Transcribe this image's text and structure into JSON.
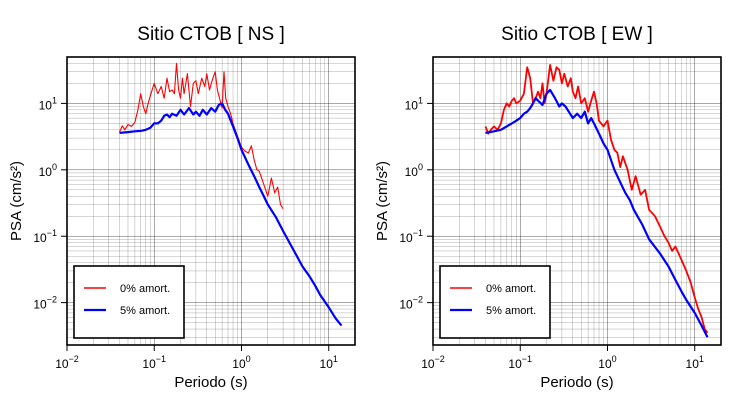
{
  "chart_data": [
    {
      "type": "line",
      "title": "Sitio CTOB [ NS ]",
      "xlabel": "Periodo (s)",
      "ylabel": "PSA (cm/s²)",
      "xscale": "log",
      "yscale": "log",
      "xlim": [
        0.01,
        20
      ],
      "ylim": [
        0.0023,
        50
      ],
      "xticks": [
        {
          "value": 0.01,
          "base": "10",
          "exp": "−2"
        },
        {
          "value": 0.1,
          "base": "10",
          "exp": "−1"
        },
        {
          "value": 1,
          "base": "10",
          "exp": "0"
        },
        {
          "value": 10,
          "base": "10",
          "exp": "1"
        }
      ],
      "yticks": [
        {
          "value": 0.01,
          "base": "10",
          "exp": "−2"
        },
        {
          "value": 0.1,
          "base": "10",
          "exp": "−1"
        },
        {
          "value": 1,
          "base": "10",
          "exp": "0"
        },
        {
          "value": 10,
          "base": "10",
          "exp": "1"
        }
      ],
      "grid": true,
      "legend_position": "bottom-left",
      "series": [
        {
          "name": "0% amort.",
          "color": "#ff0000",
          "x": [
            0.04,
            0.043,
            0.046,
            0.05,
            0.055,
            0.06,
            0.065,
            0.07,
            0.075,
            0.08,
            0.085,
            0.09,
            0.1,
            0.11,
            0.12,
            0.13,
            0.14,
            0.15,
            0.16,
            0.17,
            0.18,
            0.19,
            0.2,
            0.21,
            0.22,
            0.24,
            0.26,
            0.28,
            0.3,
            0.32,
            0.35,
            0.38,
            0.4,
            0.43,
            0.46,
            0.5,
            0.53,
            0.56,
            0.6,
            0.63,
            0.66,
            0.7,
            0.75,
            0.8,
            0.9,
            1.0,
            1.1,
            1.2,
            1.3,
            1.4,
            1.5,
            1.6,
            1.8,
            2.0,
            2.2,
            2.4,
            2.6,
            2.8,
            3.0
          ],
          "values": [
            3.7,
            4.6,
            4.0,
            4.8,
            4.5,
            5.2,
            8.0,
            14.0,
            9.0,
            7.0,
            10.0,
            13.0,
            20.0,
            14.0,
            18.0,
            12.0,
            24.0,
            15.0,
            16.0,
            14.0,
            40.0,
            16.0,
            12.0,
            24.0,
            14.0,
            28.0,
            9.0,
            20.0,
            22.0,
            14.0,
            24.0,
            18.0,
            28.0,
            16.0,
            22.0,
            30.0,
            16.0,
            12.0,
            8.5,
            30.0,
            12.0,
            9.0,
            7.0,
            5.0,
            3.2,
            2.2,
            1.9,
            1.8,
            2.3,
            1.4,
            1.0,
            0.95,
            0.6,
            0.4,
            0.75,
            0.45,
            0.55,
            0.3,
            0.26
          ]
        },
        {
          "name": "5% amort.",
          "color": "#0000ff",
          "x": [
            0.04,
            0.05,
            0.06,
            0.07,
            0.08,
            0.09,
            0.1,
            0.11,
            0.12,
            0.13,
            0.14,
            0.15,
            0.16,
            0.18,
            0.2,
            0.22,
            0.25,
            0.28,
            0.3,
            0.33,
            0.36,
            0.4,
            0.45,
            0.5,
            0.55,
            0.6,
            0.65,
            0.7,
            0.8,
            0.9,
            1.0,
            1.2,
            1.4,
            1.6,
            1.8,
            2.0,
            2.5,
            3.0,
            4.0,
            5.0,
            6.0,
            7.0,
            8.0,
            10.0,
            12.0,
            14.0
          ],
          "values": [
            3.6,
            3.7,
            3.8,
            3.85,
            4.0,
            4.3,
            5.0,
            5.0,
            5.5,
            6.5,
            6.8,
            6.2,
            7.0,
            6.5,
            8.0,
            6.8,
            8.5,
            6.8,
            7.5,
            6.5,
            8.0,
            6.8,
            8.5,
            7.5,
            9.5,
            10.0,
            8.0,
            7.0,
            4.5,
            3.0,
            2.0,
            1.2,
            0.8,
            0.55,
            0.4,
            0.3,
            0.19,
            0.12,
            0.06,
            0.035,
            0.025,
            0.018,
            0.013,
            0.0085,
            0.0058,
            0.0045
          ]
        }
      ]
    },
    {
      "type": "line",
      "title": "Sitio CTOB [ EW ]",
      "xlabel": "Periodo (s)",
      "ylabel": "PSA (cm/s²)",
      "xscale": "log",
      "yscale": "log",
      "xlim": [
        0.01,
        20
      ],
      "ylim": [
        0.0023,
        50
      ],
      "xticks": [
        {
          "value": 0.01,
          "base": "10",
          "exp": "−2"
        },
        {
          "value": 0.1,
          "base": "10",
          "exp": "−1"
        },
        {
          "value": 1,
          "base": "10",
          "exp": "0"
        },
        {
          "value": 10,
          "base": "10",
          "exp": "1"
        }
      ],
      "yticks": [
        {
          "value": 0.01,
          "base": "10",
          "exp": "−2"
        },
        {
          "value": 0.1,
          "base": "10",
          "exp": "−1"
        },
        {
          "value": 1,
          "base": "10",
          "exp": "0"
        },
        {
          "value": 10,
          "base": "10",
          "exp": "1"
        }
      ],
      "grid": true,
      "legend_position": "bottom-left",
      "series": [
        {
          "name": "0% amort.",
          "color": "#ff0000",
          "x": [
            0.04,
            0.043,
            0.046,
            0.05,
            0.055,
            0.06,
            0.065,
            0.07,
            0.075,
            0.08,
            0.085,
            0.09,
            0.1,
            0.11,
            0.12,
            0.13,
            0.14,
            0.15,
            0.16,
            0.17,
            0.18,
            0.19,
            0.2,
            0.22,
            0.24,
            0.26,
            0.28,
            0.3,
            0.32,
            0.35,
            0.38,
            0.4,
            0.43,
            0.46,
            0.5,
            0.55,
            0.6,
            0.65,
            0.7,
            0.75,
            0.8,
            0.9,
            1.0,
            1.1,
            1.2,
            1.3,
            1.4,
            1.5,
            1.7,
            1.9,
            2.1,
            2.4,
            2.7,
            3.0,
            3.5,
            4.0,
            4.5,
            5.0,
            5.5,
            6.0,
            7.0,
            8.0,
            9.0,
            10.0,
            11.0,
            12.0,
            13.0,
            14.0
          ],
          "values": [
            4.5,
            3.5,
            4.0,
            4.5,
            4.0,
            5.0,
            8.0,
            10.0,
            9.0,
            11.0,
            12.0,
            10.0,
            11.0,
            14.0,
            35.0,
            24.0,
            10.0,
            12.0,
            15.0,
            12.0,
            20.0,
            10.0,
            14.0,
            38.0,
            22.0,
            35.0,
            32.0,
            20.0,
            28.0,
            18.0,
            24.0,
            15.0,
            12.0,
            18.0,
            10.0,
            12.0,
            7.5,
            11.0,
            15.0,
            10.0,
            5.5,
            4.5,
            5.5,
            2.8,
            2.0,
            1.8,
            1.1,
            1.6,
            1.0,
            0.5,
            0.8,
            0.42,
            0.5,
            0.25,
            0.2,
            0.14,
            0.1,
            0.08,
            0.06,
            0.07,
            0.045,
            0.03,
            0.02,
            0.012,
            0.008,
            0.006,
            0.004,
            0.0035
          ]
        },
        {
          "name": "5% amort.",
          "color": "#0000ff",
          "x": [
            0.04,
            0.05,
            0.06,
            0.07,
            0.08,
            0.09,
            0.1,
            0.11,
            0.12,
            0.13,
            0.14,
            0.15,
            0.16,
            0.18,
            0.2,
            0.22,
            0.25,
            0.28,
            0.3,
            0.33,
            0.36,
            0.4,
            0.45,
            0.5,
            0.55,
            0.6,
            0.65,
            0.7,
            0.8,
            0.9,
            1.0,
            1.2,
            1.4,
            1.6,
            1.8,
            2.0,
            2.5,
            3.0,
            4.0,
            5.0,
            6.0,
            7.0,
            8.0,
            10.0,
            12.0,
            14.0
          ],
          "values": [
            3.6,
            3.8,
            4.0,
            4.5,
            5.0,
            5.5,
            6.0,
            7.0,
            7.5,
            8.5,
            10.0,
            12.0,
            11.0,
            9.5,
            14.0,
            16.0,
            12.0,
            9.0,
            10.0,
            9.0,
            7.5,
            6.0,
            7.0,
            6.0,
            7.5,
            5.0,
            6.0,
            5.0,
            3.5,
            2.5,
            2.0,
            1.0,
            0.65,
            0.45,
            0.35,
            0.25,
            0.15,
            0.09,
            0.055,
            0.035,
            0.022,
            0.015,
            0.011,
            0.007,
            0.0045,
            0.003
          ]
        }
      ]
    }
  ]
}
